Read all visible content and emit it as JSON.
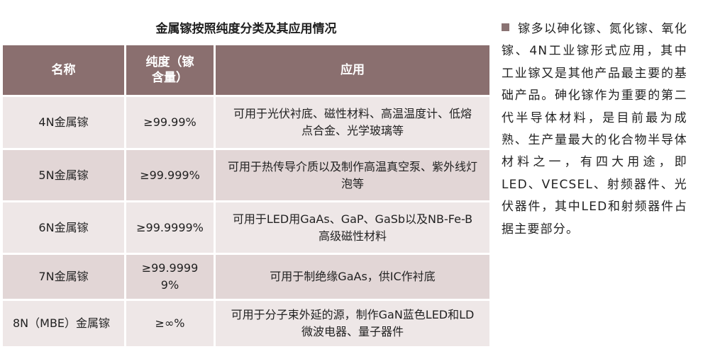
{
  "table": {
    "title": "金属镓按照纯度分类及其应用情况",
    "headers": {
      "name": "名称",
      "purity": "纯度（镓含量）",
      "application": "应用"
    },
    "rows": [
      {
        "name": "4N金属镓",
        "purity": "≥99.99%",
        "application": "可用于光伏衬底、磁性材料、高温温度计、低熔点合金、光学玻璃等"
      },
      {
        "name": "5N金属镓",
        "purity": "≥99.999%",
        "application": "可用于热传导介质以及制作高温真空泵、紫外线灯泡等"
      },
      {
        "name": "6N金属镓",
        "purity": "≥99.9999%",
        "application": "可用于LED用GaAs、GaP、GaSb以及NB-Fe-B高级磁性材料"
      },
      {
        "name": "7N金属镓",
        "purity": "≥99.99999%",
        "application": "可用于制绝缘GaAs，供IC作衬底"
      },
      {
        "name": "8N（MBE）金属镓",
        "purity": "≥∞%",
        "application": "可用于分子束外延的源，制作GaN蓝色LED和LD微波电器、量子器件"
      }
    ]
  },
  "side_note": {
    "text": "镓多以砷化镓、氮化镓、氧化镓、4N工业镓形式应用，其中工业镓又是其他产品最主要的基础产品。砷化镓作为重要的第二代半导体材料，是目前最为成熟、生产量最大的化合物半导体材料之一，有四大用途，即LED、VECSEL、射频器件、光伏器件，其中LED和射频器件占据主要部分。"
  },
  "colors": {
    "header_bg": "#8a6f6f",
    "row_light": "#eee7e7",
    "row_dark": "#e2d6d6",
    "bullet": "#8a7373"
  }
}
